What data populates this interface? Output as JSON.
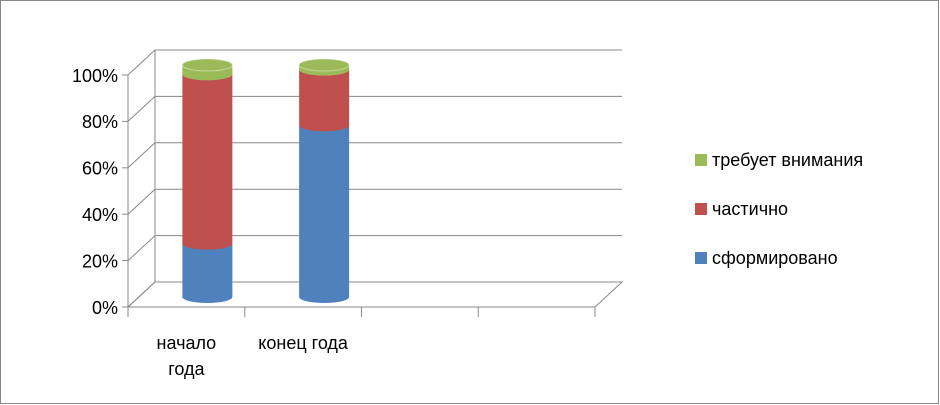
{
  "chart_data": {
    "type": "bar3d_stacked_percent",
    "categories": [
      "начало года",
      "конец года",
      null,
      null
    ],
    "series": [
      {
        "name": "сформировано",
        "color": "#4f81bd",
        "values": [
          23,
          74,
          null,
          null
        ]
      },
      {
        "name": "частично",
        "color": "#c0504d",
        "values": [
          73,
          24,
          null,
          null
        ]
      },
      {
        "name": "требует внимания",
        "color": "#9bbb59",
        "values": [
          4,
          2,
          null,
          null
        ]
      }
    ],
    "ylim": [
      0,
      100
    ],
    "yticks": [
      {
        "value": 0,
        "label": "0%"
      },
      {
        "value": 20,
        "label": "20%"
      },
      {
        "value": 40,
        "label": "40%"
      },
      {
        "value": 60,
        "label": "60%"
      },
      {
        "value": 80,
        "label": "80%"
      },
      {
        "value": 100,
        "label": "100%"
      }
    ],
    "grid": true,
    "legend": "right"
  }
}
